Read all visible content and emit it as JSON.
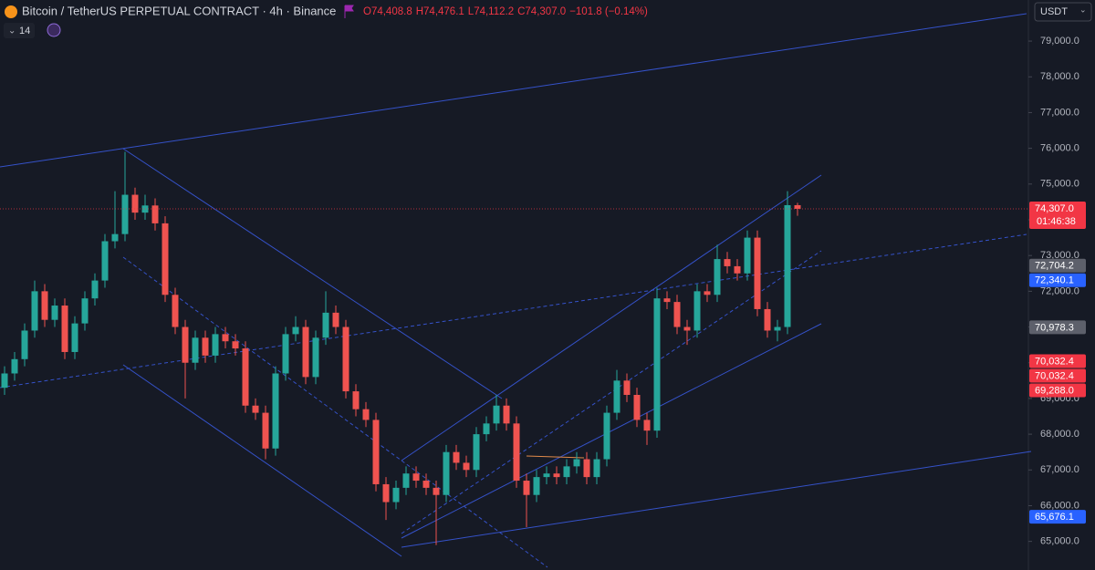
{
  "chart_data": {
    "type": "candlestick",
    "title": "Bitcoin / TetherUS PERPETUAL CONTRACT · 4h · Binance",
    "legend_ohlc": [
      "O74,408.8",
      "H74,476.1",
      "L74,112.2",
      "C74,307.0",
      "−101.8 (−0.14%)"
    ],
    "indicator": "14",
    "currency": "USDT",
    "up_color": "#26a69a",
    "down_color": "#ef5350",
    "open": [
      69300,
      69700,
      70100,
      70900,
      72000,
      71200,
      71600,
      70300,
      71100,
      71800,
      72300,
      73400,
      73600,
      74700,
      74200,
      74400,
      73900,
      71900,
      71000,
      70000,
      70700,
      70200,
      70800,
      70600,
      70400,
      68800,
      68600,
      67600,
      69700,
      70800,
      71000,
      69600,
      70700,
      71400,
      71000,
      69200,
      68700,
      68400,
      66600,
      66100,
      66500,
      66900,
      66700,
      66500,
      66300,
      67500,
      67200,
      67000,
      68000,
      68300,
      68800,
      68300,
      66700,
      66300,
      66800,
      66900,
      66800,
      67100,
      67300,
      66800,
      67300,
      68600,
      69500,
      69100,
      68400,
      68100,
      71800,
      71700,
      71000,
      70900,
      72000,
      71900,
      72900,
      72700,
      72500,
      73500,
      71500,
      70900,
      71000,
      74408.8
    ],
    "high": [
      69900,
      70300,
      71100,
      72300,
      72200,
      71800,
      71800,
      71300,
      72000,
      72500,
      73600,
      74800,
      75900,
      74900,
      74700,
      74600,
      74100,
      72100,
      71200,
      70900,
      70900,
      71000,
      71000,
      70800,
      70600,
      69000,
      68800,
      69900,
      71000,
      71300,
      71200,
      70900,
      72000,
      71600,
      71200,
      69400,
      68900,
      68600,
      66800,
      66700,
      67100,
      67100,
      66900,
      66700,
      67700,
      67700,
      67400,
      68200,
      68500,
      69100,
      69000,
      68500,
      66900,
      67000,
      67100,
      67100,
      67300,
      67500,
      67500,
      67500,
      68800,
      69800,
      69700,
      69300,
      68600,
      72100,
      72000,
      71900,
      71200,
      72200,
      72200,
      73300,
      73100,
      72900,
      73700,
      73700,
      71700,
      71200,
      74800,
      74476.1
    ],
    "low": [
      69100,
      69500,
      69900,
      70700,
      71000,
      71000,
      70100,
      70100,
      70900,
      71600,
      72100,
      73200,
      73400,
      74000,
      74000,
      73700,
      71700,
      70800,
      69000,
      69800,
      70000,
      70000,
      70400,
      70200,
      68600,
      68400,
      67300,
      67400,
      69500,
      70600,
      69400,
      69400,
      70500,
      70800,
      69000,
      68500,
      68200,
      66400,
      65600,
      65900,
      66300,
      66500,
      66300,
      64900,
      66100,
      67000,
      66800,
      66800,
      67800,
      68100,
      68100,
      66500,
      65400,
      66100,
      66600,
      66600,
      66600,
      66900,
      66600,
      66600,
      67100,
      68400,
      68900,
      68200,
      67700,
      67900,
      71500,
      70800,
      70500,
      70700,
      71700,
      71700,
      72500,
      72300,
      72300,
      71300,
      70700,
      70600,
      70800,
      74112.2
    ],
    "close": [
      69700,
      70100,
      70900,
      72000,
      71200,
      71600,
      70300,
      71100,
      71800,
      72300,
      73400,
      73600,
      74700,
      74200,
      74400,
      73900,
      71900,
      71000,
      70000,
      70700,
      70200,
      70800,
      70600,
      70400,
      68800,
      68600,
      67600,
      69700,
      70800,
      71000,
      69600,
      70700,
      71400,
      71000,
      69200,
      68700,
      68400,
      66600,
      66100,
      66500,
      66900,
      66700,
      66500,
      66300,
      67500,
      67200,
      67000,
      68000,
      68300,
      68800,
      68300,
      66700,
      66300,
      66800,
      66900,
      66800,
      67100,
      67300,
      66800,
      67300,
      68600,
      69500,
      69100,
      68400,
      68100,
      71800,
      71700,
      71000,
      70900,
      72000,
      71900,
      72900,
      72700,
      72500,
      73500,
      71500,
      70900,
      71000,
      74408.8,
      74307
    ],
    "ylim": [
      64200,
      80150
    ],
    "yticks": [
      {
        "value": 65000,
        "label": "65,000.0"
      },
      {
        "value": 66000,
        "label": "66,000.0"
      },
      {
        "value": 67000,
        "label": "67,000.0"
      },
      {
        "value": 68000,
        "label": "68,000.0"
      },
      {
        "value": 69000,
        "label": "69,000.0"
      },
      {
        "value": 70000,
        "label": "70,000.0"
      },
      {
        "value": 71000,
        "label": "71,000.0"
      },
      {
        "value": 72000,
        "label": "72,000.0"
      },
      {
        "value": 73000,
        "label": "73,000.0"
      },
      {
        "value": 74000,
        "label": "74,000.0"
      },
      {
        "value": 75000,
        "label": "75,000.0"
      },
      {
        "value": 76000,
        "label": "76,000.0"
      },
      {
        "value": 77000,
        "label": "77,000.0"
      },
      {
        "value": 78000,
        "label": "78,000.0"
      },
      {
        "value": 79000,
        "label": "79,000.0"
      }
    ],
    "price_labels": [
      {
        "value": 74307.0,
        "label": "74,307.0",
        "color": "#f23645"
      },
      {
        "value": 72704.2,
        "label": "72,704.2",
        "color": "#5d606b"
      },
      {
        "value": 72340.1,
        "label": "72,340.1",
        "color": "#2962ff"
      },
      {
        "value": 70978.3,
        "label": "70,978.3",
        "color": "#5d606b"
      },
      {
        "value": 70032.4,
        "label": "70,032.4",
        "color": "#f23645"
      },
      {
        "value": 70032.4,
        "label": "70,032.4",
        "color": "#f23645"
      },
      {
        "value": 69288.0,
        "label": "69,288.0",
        "color": "#f23645"
      },
      {
        "value": 65676.1,
        "label": "65,676.1",
        "color": "#2962ff"
      }
    ],
    "countdown": "01:46:38"
  }
}
